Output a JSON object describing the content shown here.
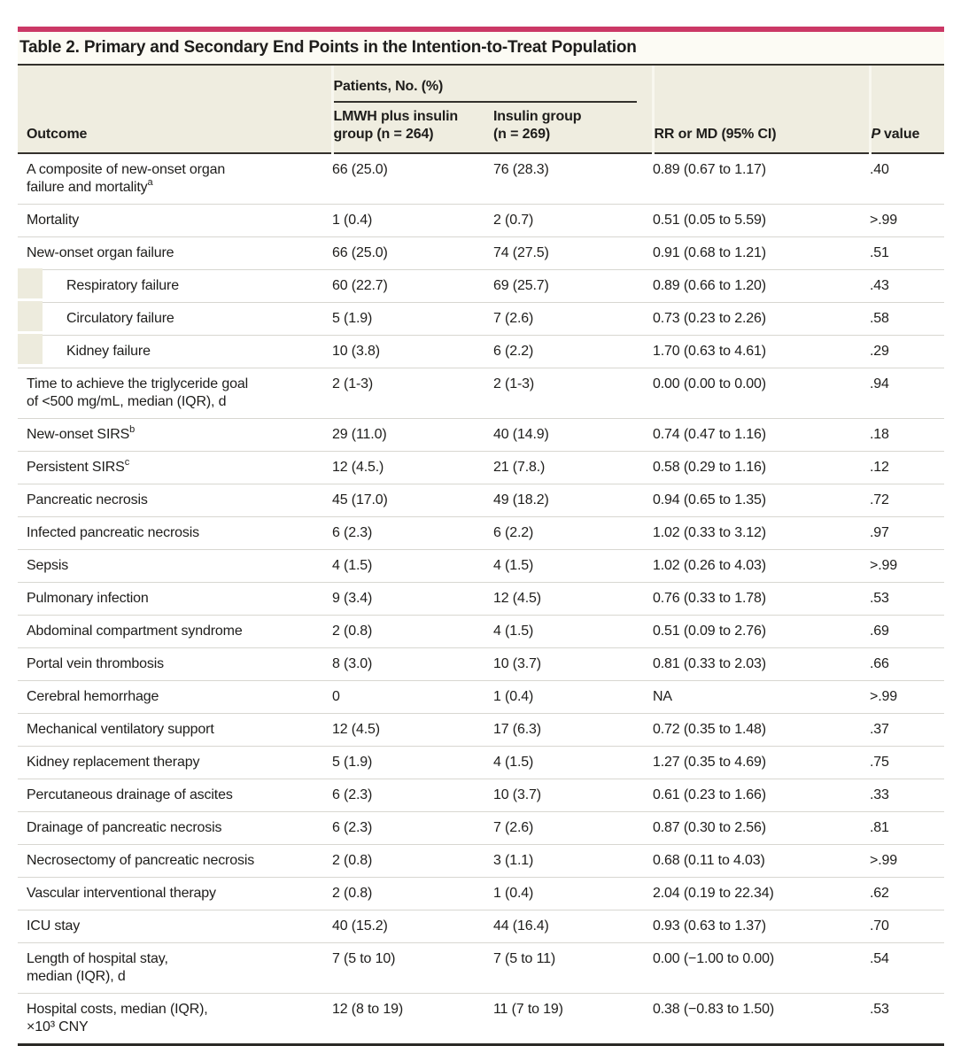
{
  "colors": {
    "accent_bar": "#cb3866",
    "header_bg": "#efede0",
    "indent_marker": "#edebdd",
    "rule_dark": "#33312c",
    "hairline": "#d8d7d1"
  },
  "table": {
    "title": "Table 2. Primary and Secondary End Points in the Intention-to-Treat Population",
    "columns": {
      "outcome": "Outcome",
      "patients_group": "Patients, No. (%)",
      "group1_lines": [
        "LMWH plus insulin",
        "group (n = 264)"
      ],
      "group2_lines": [
        "Insulin group",
        "(n = 269)"
      ],
      "rr_md": "RR or MD (95% CI)",
      "p_italic": "P",
      "p_rest": "value"
    },
    "rows": [
      {
        "lines": [
          "A composite of new-onset organ",
          "failure and mortality"
        ],
        "sup": "a",
        "indent": false,
        "values": [
          "66 (25.0)",
          "76 (28.3)",
          "0.89 (0.67 to 1.17)",
          ".40"
        ]
      },
      {
        "lines": [
          "Mortality"
        ],
        "indent": false,
        "values": [
          "1 (0.4)",
          "2 (0.7)",
          "0.51 (0.05 to 5.59)",
          ">.99"
        ]
      },
      {
        "lines": [
          "New-onset organ failure"
        ],
        "indent": false,
        "values": [
          "66 (25.0)",
          "74 (27.5)",
          "0.91 (0.68 to 1.21)",
          ".51"
        ]
      },
      {
        "lines": [
          "Respiratory failure"
        ],
        "indent": true,
        "values": [
          "60 (22.7)",
          "69 (25.7)",
          "0.89 (0.66 to 1.20)",
          ".43"
        ]
      },
      {
        "lines": [
          "Circulatory failure"
        ],
        "indent": true,
        "values": [
          "5 (1.9)",
          "7 (2.6)",
          "0.73 (0.23 to 2.26)",
          ".58"
        ]
      },
      {
        "lines": [
          "Kidney failure"
        ],
        "indent": true,
        "values": [
          "10 (3.8)",
          "6 (2.2)",
          "1.70 (0.63 to 4.61)",
          ".29"
        ]
      },
      {
        "lines": [
          "Time to achieve the triglyceride goal",
          "of <500 mg/mL, median (IQR), d"
        ],
        "indent": false,
        "values": [
          "2 (1-3)",
          "2 (1-3)",
          "0.00 (0.00 to 0.00)",
          ".94"
        ]
      },
      {
        "lines": [
          "New-onset SIRS"
        ],
        "sup": "b",
        "indent": false,
        "values": [
          "29 (11.0)",
          "40 (14.9)",
          "0.74 (0.47 to 1.16)",
          ".18"
        ]
      },
      {
        "lines": [
          "Persistent SIRS"
        ],
        "sup": "c",
        "indent": false,
        "values": [
          "12 (4.5.)",
          "21 (7.8.)",
          "0.58 (0.29 to 1.16)",
          ".12"
        ]
      },
      {
        "lines": [
          "Pancreatic necrosis"
        ],
        "indent": false,
        "values": [
          "45 (17.0)",
          "49 (18.2)",
          "0.94 (0.65 to 1.35)",
          ".72"
        ]
      },
      {
        "lines": [
          "Infected pancreatic necrosis"
        ],
        "indent": false,
        "values": [
          "6 (2.3)",
          "6 (2.2)",
          "1.02 (0.33 to 3.12)",
          ".97"
        ]
      },
      {
        "lines": [
          "Sepsis"
        ],
        "indent": false,
        "values": [
          "4 (1.5)",
          "4 (1.5)",
          "1.02 (0.26 to 4.03)",
          ">.99"
        ]
      },
      {
        "lines": [
          "Pulmonary infection"
        ],
        "indent": false,
        "values": [
          "9 (3.4)",
          "12 (4.5)",
          "0.76 (0.33 to 1.78)",
          ".53"
        ]
      },
      {
        "lines": [
          "Abdominal compartment syndrome"
        ],
        "indent": false,
        "values": [
          "2 (0.8)",
          "4 (1.5)",
          "0.51 (0.09 to 2.76)",
          ".69"
        ]
      },
      {
        "lines": [
          "Portal vein thrombosis"
        ],
        "indent": false,
        "values": [
          "8 (3.0)",
          "10 (3.7)",
          "0.81 (0.33 to 2.03)",
          ".66"
        ]
      },
      {
        "lines": [
          "Cerebral hemorrhage"
        ],
        "indent": false,
        "values": [
          "0",
          "1 (0.4)",
          "NA",
          ">.99"
        ]
      },
      {
        "lines": [
          "Mechanical ventilatory support"
        ],
        "indent": false,
        "values": [
          "12 (4.5)",
          "17 (6.3)",
          "0.72 (0.35 to 1.48)",
          ".37"
        ]
      },
      {
        "lines": [
          "Kidney replacement therapy"
        ],
        "indent": false,
        "values": [
          "5 (1.9)",
          "4 (1.5)",
          "1.27 (0.35 to 4.69)",
          ".75"
        ]
      },
      {
        "lines": [
          "Percutaneous drainage of ascites"
        ],
        "indent": false,
        "values": [
          "6 (2.3)",
          "10 (3.7)",
          "0.61 (0.23 to 1.66)",
          ".33"
        ]
      },
      {
        "lines": [
          "Drainage of pancreatic necrosis"
        ],
        "indent": false,
        "values": [
          "6 (2.3)",
          "7 (2.6)",
          "0.87 (0.30 to 2.56)",
          ".81"
        ]
      },
      {
        "lines": [
          "Necrosectomy of pancreatic necrosis"
        ],
        "indent": false,
        "values": [
          "2 (0.8)",
          "3 (1.1)",
          "0.68 (0.11 to 4.03)",
          ">.99"
        ]
      },
      {
        "lines": [
          "Vascular interventional therapy"
        ],
        "indent": false,
        "values": [
          "2 (0.8)",
          "1 (0.4)",
          "2.04 (0.19 to 22.34)",
          ".62"
        ]
      },
      {
        "lines": [
          "ICU stay"
        ],
        "indent": false,
        "values": [
          "40 (15.2)",
          "44 (16.4)",
          "0.93 (0.63 to 1.37)",
          ".70"
        ]
      },
      {
        "lines": [
          "Length of hospital stay,",
          "median (IQR), d"
        ],
        "indent": false,
        "values": [
          "7 (5 to 10)",
          "7 (5 to 11)",
          "0.00 (−1.00 to 0.00)",
          ".54"
        ]
      },
      {
        "lines": [
          "Hospital costs, median (IQR),",
          "×10³ CNY"
        ],
        "indent": false,
        "values": [
          "12 (8 to 19)",
          "11 (7 to 19)",
          "0.38 (−0.83 to 1.50)",
          ".53"
        ]
      }
    ]
  }
}
